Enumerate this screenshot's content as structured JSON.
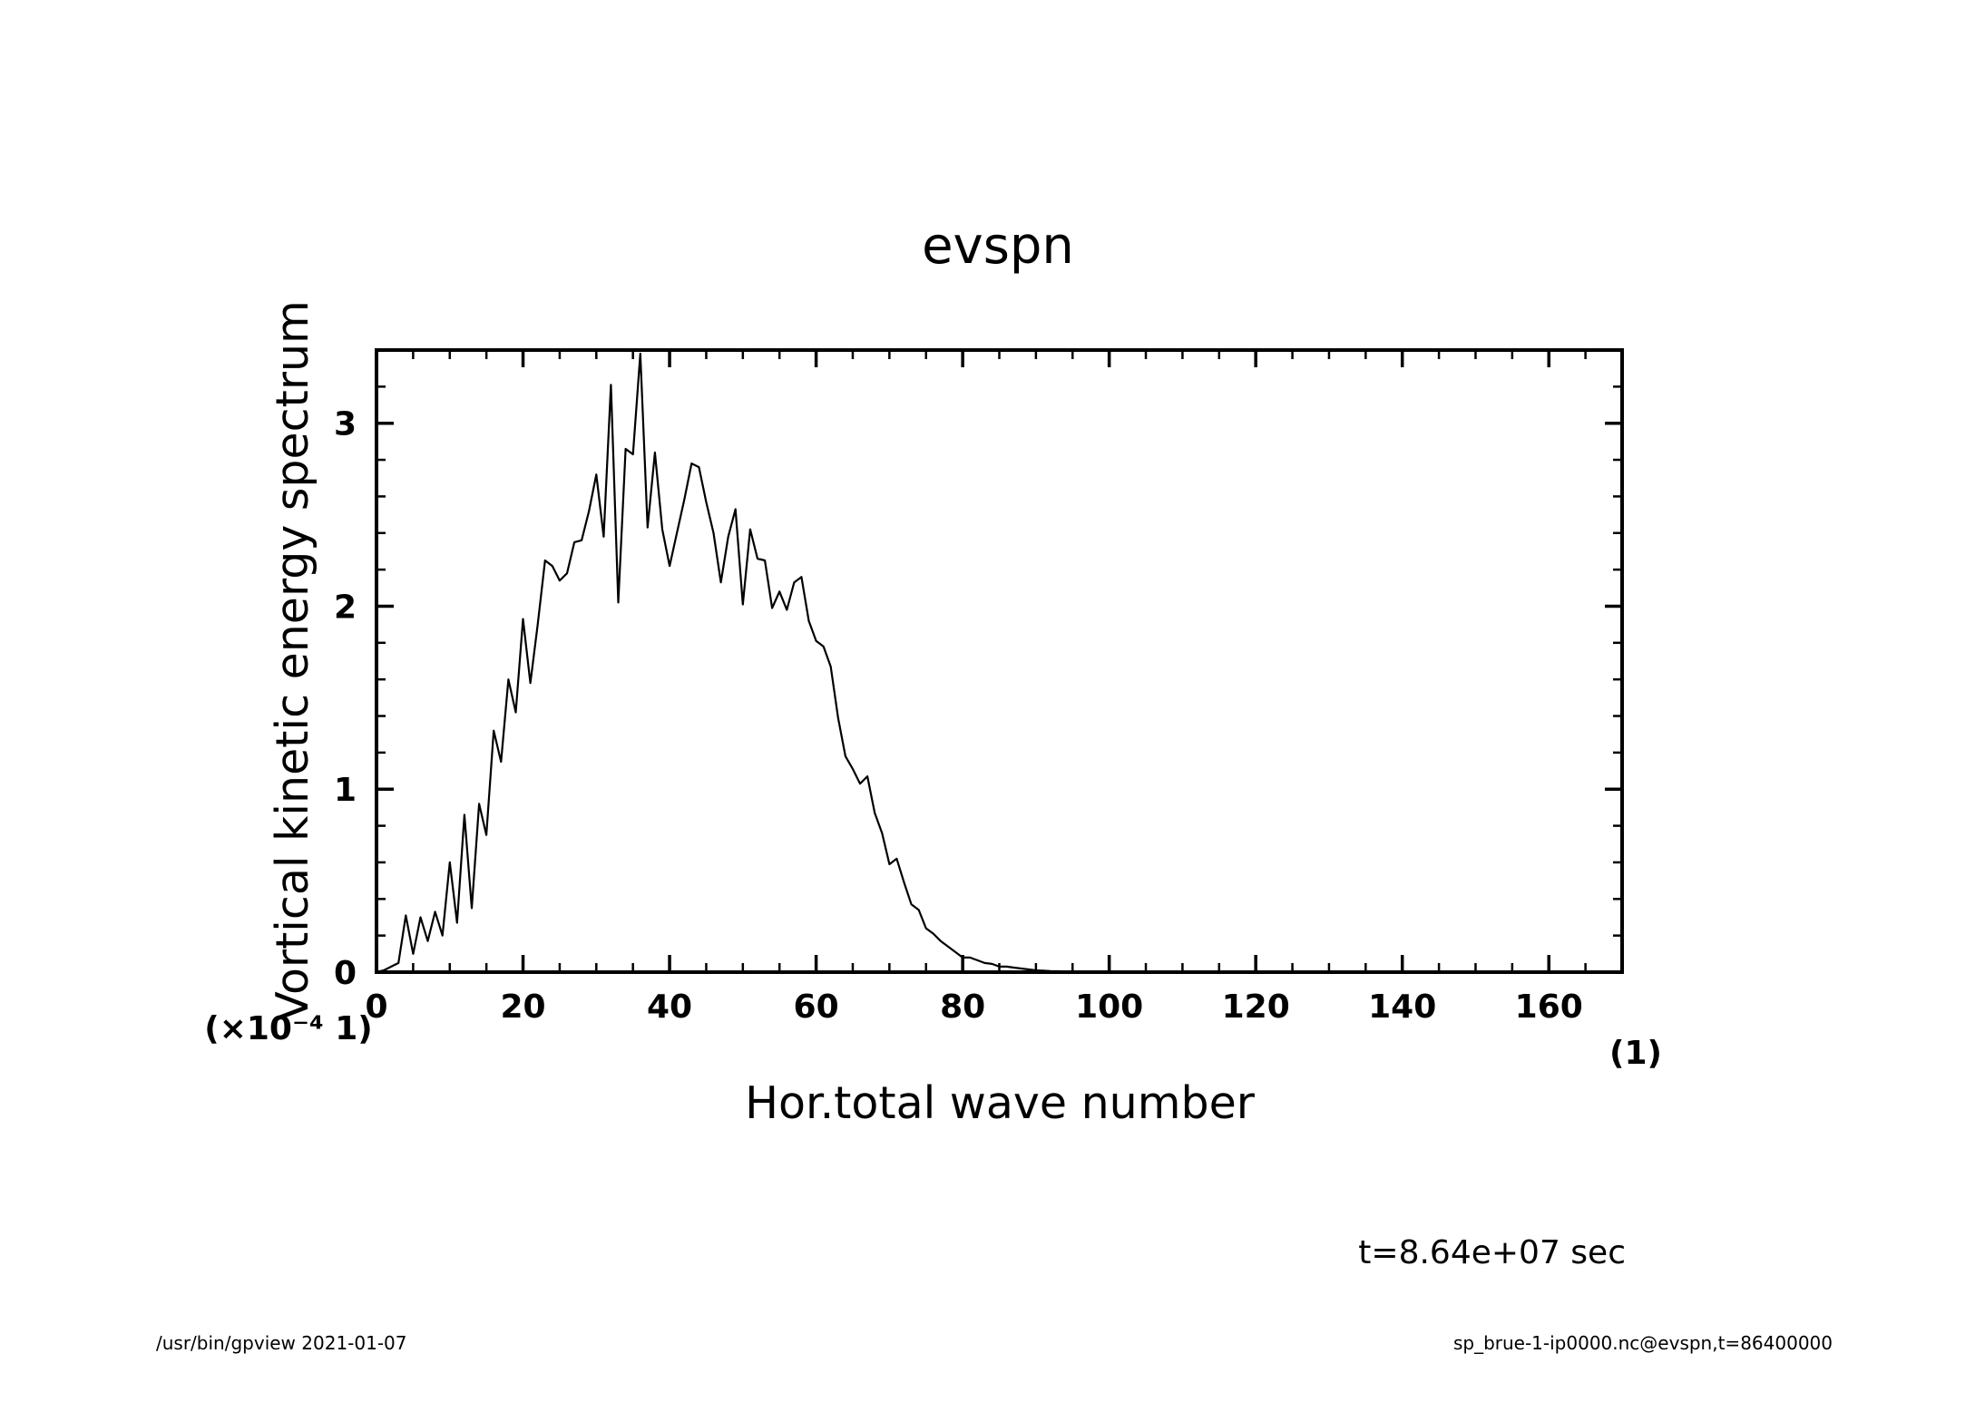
{
  "footer": {
    "left": "/usr/bin/gpview   2021-01-07",
    "right": "sp_brue-1-ip0000.nc@evspn,t=86400000"
  },
  "time_label": "t=8.64e+07 sec",
  "chart_data": {
    "type": "line",
    "title": "evspn",
    "xlabel": "Hor.total wave number",
    "ylabel": "Vortical kinetic energy spectrum",
    "x_unit": "(1)",
    "y_scale_label": "(×10⁻⁴ 1)",
    "xlim": [
      0,
      170
    ],
    "ylim": [
      0,
      3.4
    ],
    "x_ticks": [
      0,
      20,
      40,
      60,
      80,
      100,
      120,
      140,
      160
    ],
    "y_ticks": [
      0,
      1,
      2,
      3
    ],
    "x_minor_step": 5,
    "y_minor_step": 0.2,
    "grid": false,
    "series": [
      {
        "x": [
          0,
          1,
          2,
          3,
          4,
          5,
          6,
          7,
          8,
          9,
          10,
          11,
          12,
          13,
          14,
          15,
          16,
          17,
          18,
          19,
          20,
          21,
          22,
          23,
          24,
          25,
          26,
          27,
          28,
          29,
          30,
          31,
          32,
          33,
          34,
          35,
          36,
          37,
          38,
          39,
          40,
          41,
          42,
          43,
          44,
          45,
          46,
          47,
          48,
          49,
          50,
          51,
          52,
          53,
          54,
          55,
          56,
          57,
          58,
          59,
          60,
          61,
          62,
          63,
          64,
          65,
          66,
          67,
          68,
          69,
          70,
          71,
          72,
          73,
          74,
          75,
          76,
          77,
          78,
          79,
          80,
          81,
          82,
          83,
          84,
          85,
          86,
          87,
          88,
          89,
          90,
          91,
          92,
          93,
          94,
          95,
          96,
          97,
          98,
          99,
          100,
          105,
          110,
          120,
          130,
          140,
          150,
          160,
          170
        ],
        "y": [
          0,
          0.01,
          0.03,
          0.05,
          0.31,
          0.1,
          0.3,
          0.17,
          0.33,
          0.2,
          0.6,
          0.27,
          0.86,
          0.35,
          0.92,
          0.75,
          1.32,
          1.15,
          1.6,
          1.42,
          1.93,
          1.58,
          1.9,
          2.25,
          2.22,
          2.14,
          2.18,
          2.35,
          2.36,
          2.52,
          2.72,
          2.38,
          3.21,
          2.02,
          2.86,
          2.83,
          3.38,
          2.43,
          2.84,
          2.42,
          2.22,
          2.4,
          2.58,
          2.78,
          2.76,
          2.57,
          2.4,
          2.13,
          2.38,
          2.53,
          2.01,
          2.42,
          2.26,
          2.25,
          1.99,
          2.08,
          1.98,
          2.13,
          2.16,
          1.92,
          1.81,
          1.78,
          1.67,
          1.39,
          1.18,
          1.11,
          1.03,
          1.07,
          0.87,
          0.76,
          0.59,
          0.62,
          0.49,
          0.37,
          0.34,
          0.24,
          0.21,
          0.17,
          0.14,
          0.11,
          0.08,
          0.08,
          0.065,
          0.05,
          0.045,
          0.03,
          0.03,
          0.025,
          0.02,
          0.015,
          0.01,
          0.008,
          0.006,
          0.005,
          0.004,
          0.003,
          0.002,
          0.002,
          0.001,
          0.001,
          0.001,
          0.0005,
          0.0002,
          0,
          0,
          0,
          0,
          0,
          0
        ]
      }
    ]
  }
}
